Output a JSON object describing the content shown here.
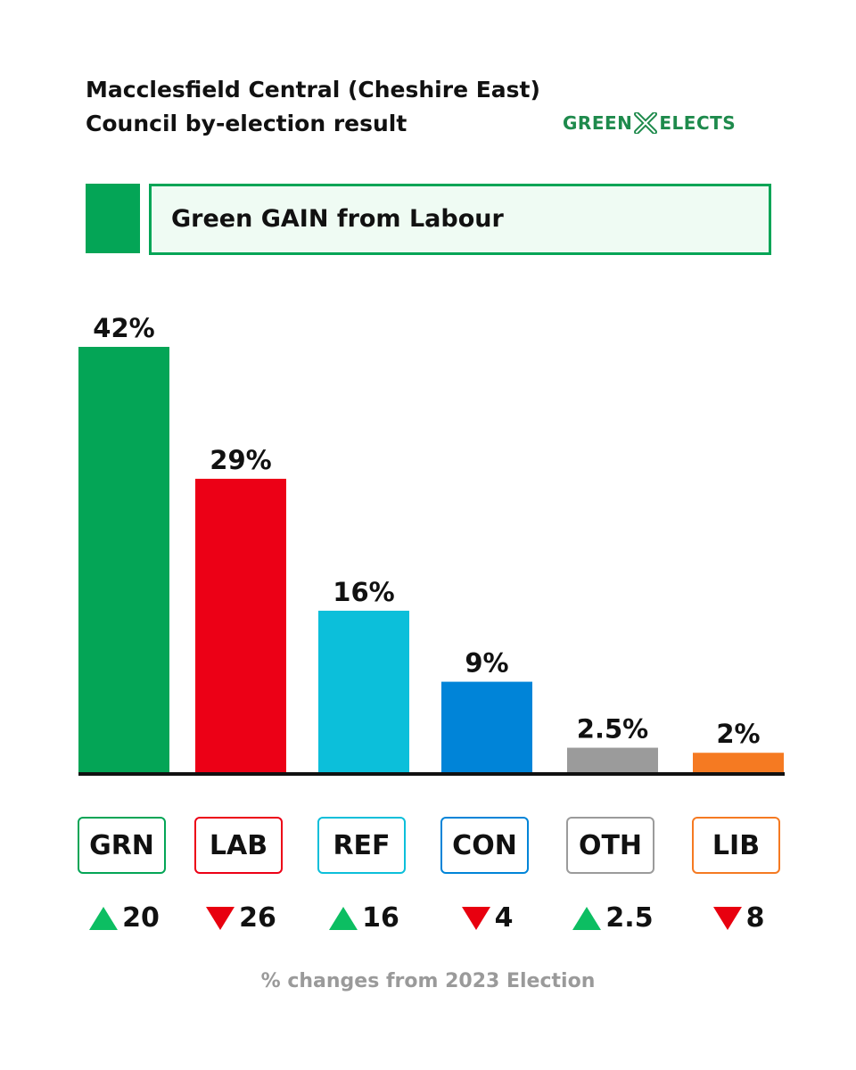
{
  "title": {
    "line1": "Macclesfield Central (Cheshire East)",
    "line2": "Council by-election result"
  },
  "logo": {
    "left": "GREEN",
    "right": "ELECTS",
    "color": "#1e8a4c"
  },
  "banner": {
    "text": "Green GAIN from Labour",
    "color": "#04a556"
  },
  "chart_data": {
    "type": "bar",
    "categories": [
      "GRN",
      "LAB",
      "REF",
      "CON",
      "OTH",
      "LIB"
    ],
    "values": [
      42,
      29,
      16,
      9,
      2.5,
      2
    ],
    "value_labels": [
      "42%",
      "29%",
      "16%",
      "9%",
      "2.5%",
      "2%"
    ],
    "colors": [
      "#04a556",
      "#ec0016",
      "#0cbfda",
      "#0084d8",
      "#9b9b9b",
      "#f57a22"
    ],
    "ylim": [
      0,
      42
    ],
    "changes": [
      {
        "direction": "up",
        "value": "20"
      },
      {
        "direction": "down",
        "value": "26"
      },
      {
        "direction": "up",
        "value": "16"
      },
      {
        "direction": "down",
        "value": "4"
      },
      {
        "direction": "up",
        "value": "2.5"
      },
      {
        "direction": "down",
        "value": "8"
      }
    ],
    "change_colors": {
      "up": "#0cbe62",
      "down": "#e8000f"
    },
    "footnote": "% changes from 2023 Election"
  }
}
